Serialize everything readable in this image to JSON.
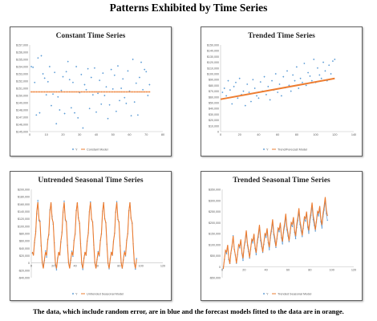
{
  "title": "Patterns Exhibited by Time Series",
  "caption": "The data, which include random error, are in blue and the forecast models fitted to the data are in orange.",
  "colors": {
    "data": "#5b9bd5",
    "model": "#ed7d31",
    "axis": "#bfbfbf",
    "text": "#595959"
  },
  "chart_data": [
    {
      "type": "scatter",
      "title": "Constant Time Series",
      "xlim": [
        0,
        80
      ],
      "ylim": [
        145000,
        157000
      ],
      "xticks": [
        0,
        10,
        20,
        30,
        40,
        50,
        60,
        70,
        80
      ],
      "yticks": [
        145000,
        146000,
        147000,
        148000,
        149000,
        150000,
        151000,
        152000,
        153000,
        154000,
        155000,
        156000,
        157000
      ],
      "legend": [
        "Y",
        "Constant Model"
      ],
      "legend_position": "bottom",
      "series": [
        {
          "name": "Y",
          "render": "points",
          "color": "#5b9bd5",
          "x": [
            1,
            2,
            3,
            4,
            5,
            6,
            7,
            8,
            9,
            10,
            11,
            12,
            13,
            14,
            15,
            16,
            17,
            18,
            19,
            20,
            21,
            22,
            23,
            24,
            25,
            26,
            27,
            28,
            29,
            30,
            31,
            32,
            33,
            34,
            35,
            36,
            37,
            38,
            39,
            40,
            41,
            42,
            43,
            44,
            45,
            46,
            47,
            48,
            49,
            50,
            51,
            52,
            53,
            54,
            55,
            56,
            57,
            58,
            59,
            60,
            61,
            62,
            63,
            64,
            65,
            66,
            67,
            68,
            69,
            70,
            71,
            72
          ],
          "y": [
            154000,
            153900,
            151800,
            147300,
            155200,
            147600,
            155500,
            153000,
            152400,
            150100,
            151900,
            154000,
            148600,
            150200,
            153200,
            146100,
            149800,
            148000,
            150700,
            152600,
            147500,
            153300,
            154700,
            152200,
            148300,
            151800,
            147600,
            154000,
            146900,
            150400,
            152900,
            145500,
            151500,
            150800,
            153700,
            148200,
            152500,
            150100,
            153800,
            147700,
            150300,
            152100,
            148800,
            153100,
            150000,
            151200,
            146800,
            148700,
            153600,
            150900,
            152800,
            147800,
            154100,
            149300,
            151000,
            152300,
            149700,
            148900,
            153400,
            150600,
            147200,
            155000,
            149100,
            151700,
            147300,
            152500,
            154600,
            150800,
            153600,
            153300,
            150000,
            151500
          ]
        },
        {
          "name": "Constant Model",
          "render": "points",
          "color": "#ed7d31",
          "constant": 150500
        }
      ]
    },
    {
      "type": "scatter",
      "title": "Trended Time Series",
      "xlim": [
        0,
        140
      ],
      "ylim": [
        0,
        150000
      ],
      "xticks": [
        0,
        20,
        40,
        60,
        80,
        100,
        120,
        140
      ],
      "yticks": [
        0,
        10000,
        20000,
        30000,
        40000,
        50000,
        60000,
        70000,
        80000,
        90000,
        100000,
        110000,
        120000,
        130000,
        140000,
        150000
      ],
      "legend": [
        "Y",
        "Trend/Forecast Model"
      ],
      "legend_position": "bottom",
      "series": [
        {
          "name": "Y",
          "render": "points",
          "color": "#5b9bd5",
          "x": [
            2,
            4,
            6,
            8,
            10,
            12,
            14,
            16,
            18,
            20,
            22,
            24,
            26,
            28,
            30,
            32,
            34,
            36,
            38,
            40,
            42,
            44,
            46,
            48,
            50,
            52,
            54,
            56,
            58,
            60,
            62,
            64,
            66,
            68,
            70,
            72,
            74,
            76,
            78,
            80,
            82,
            84,
            86,
            88,
            90,
            92,
            94,
            96,
            98,
            100,
            102,
            104,
            106,
            108,
            110,
            112,
            114,
            116,
            118,
            120
          ],
          "y": [
            68000,
            75000,
            62000,
            88000,
            72000,
            48000,
            78000,
            85000,
            58000,
            92000,
            64000,
            70000,
            45000,
            82000,
            68000,
            52000,
            90000,
            75000,
            62000,
            58000,
            86000,
            70000,
            95000,
            64000,
            78000,
            55000,
            88000,
            72000,
            100000,
            68000,
            82000,
            62000,
            95000,
            76000,
            105000,
            80000,
            70000,
            98000,
            88000,
            112000,
            75000,
            92000,
            85000,
            118000,
            80000,
            102000,
            96000,
            88000,
            125000,
            85000,
            110000,
            98000,
            92000,
            120000,
            105000,
            88000,
            115000,
            100000,
            122000,
            125000
          ]
        },
        {
          "name": "Trend/Forecast Model",
          "render": "line",
          "color": "#ed7d31",
          "x": [
            0,
            120
          ],
          "y": [
            56000,
            92000
          ]
        }
      ]
    },
    {
      "type": "line",
      "title": "Untrended Seasonal Time Series",
      "xlim": [
        0,
        120
      ],
      "ylim": [
        -40000,
        200000
      ],
      "xticks": [
        0,
        20,
        40,
        60,
        80,
        100,
        120
      ],
      "yticks": [
        -40000,
        -20000,
        0,
        20000,
        40000,
        60000,
        80000,
        100000,
        120000,
        140000,
        160000,
        180000,
        200000
      ],
      "legend": [
        "Y",
        "Untrended Seasonal Model"
      ],
      "legend_position": "bottom",
      "season_length": 12,
      "seasonal_pattern": [
        30000,
        20000,
        60000,
        80000,
        140000,
        165000,
        120000,
        110000,
        50000,
        0,
        -15000,
        10000
      ],
      "periods": 8,
      "series": [
        {
          "name": "Y",
          "render": "line-markers",
          "color": "#5b9bd5",
          "y": [
            27000,
            24000,
            55000,
            86000,
            134000,
            170000,
            115000,
            114000,
            46000,
            4000,
            -10000,
            6000,
            33000,
            16000,
            64000,
            76000,
            145000,
            160000,
            126000,
            105000,
            55000,
            -5000,
            -19000,
            14000,
            26000,
            22000,
            57000,
            84000,
            137000,
            168000,
            117000,
            113000,
            48000,
            3000,
            -11000,
            7000,
            32000,
            18000,
            62000,
            78000,
            142000,
            162000,
            123000,
            107000,
            52000,
            -3000,
            -18000,
            13000,
            28000,
            21000,
            59000,
            82000,
            139000,
            166000,
            119000,
            111000,
            49000,
            2000,
            -13000,
            9000,
            31000,
            19000,
            61000,
            79000,
            141000,
            164000,
            121000,
            109000,
            51000,
            -1000,
            -16000,
            11000,
            29000,
            21000,
            58000,
            81000,
            138000,
            167000,
            118000,
            112000,
            47000,
            1000,
            -14000,
            8000,
            32000,
            19000,
            62000,
            79000,
            142000,
            163000,
            122000,
            108000,
            52000,
            -2000,
            -17000,
            12000
          ]
        },
        {
          "name": "Untrended Seasonal Model",
          "render": "line",
          "color": "#ed7d31"
        }
      ]
    },
    {
      "type": "line",
      "title": "Trended Seasonal Time Series",
      "xlim": [
        0,
        120
      ],
      "ylim": [
        -50000,
        350000
      ],
      "xticks": [
        0,
        20,
        40,
        60,
        80,
        100,
        120
      ],
      "yticks": [
        -50000,
        0,
        50000,
        100000,
        150000,
        200000,
        250000,
        300000,
        350000
      ],
      "legend": [
        "Y",
        "Trended Seasonal Model"
      ],
      "legend_position": "bottom",
      "season_length": 12,
      "seasonal_pattern": [
        -10000,
        30000,
        70000,
        60000,
        90000,
        30000,
        0,
        50000,
        80000,
        120000,
        60000,
        30000
      ],
      "trend": {
        "start": 0,
        "slope_per_period": 2100
      },
      "periods": 8,
      "series": [
        {
          "name": "Y",
          "render": "line-markers",
          "color": "#5b9bd5",
          "y": [
            -8000,
            33000,
            72000,
            58000,
            93000,
            32000,
            14000,
            62000,
            89000,
            140000,
            79000,
            52000,
            15000,
            54000,
            97000,
            85000,
            115000,
            59000,
            28000,
            84000,
            111000,
            154000,
            96000,
            68000,
            38000,
            79000,
            121000,
            107000,
            141000,
            82000,
            54000,
            107000,
            134000,
            177000,
            118000,
            91000,
            64000,
            101000,
            146000,
            132000,
            163000,
            108000,
            77000,
            131000,
            160000,
            199000,
            144000,
            114000,
            87000,
            125000,
            168000,
            158000,
            188000,
            131000,
            103000,
            154000,
            183000,
            225000,
            167000,
            139000,
            113000,
            151000,
            191000,
            182000,
            212000,
            155000,
            127000,
            177000,
            209000,
            248000,
            191000,
            162000,
            136000,
            175000,
            215000,
            206000,
            239000,
            179000,
            151000,
            201000,
            233000,
            274000,
            214000,
            187000,
            161000,
            202000,
            242000,
            230000,
            264000,
            203000,
            175000,
            226000,
            256000,
            298000,
            240000,
            210000
          ]
        },
        {
          "name": "Trended Seasonal Model",
          "render": "line",
          "color": "#ed7d31"
        }
      ]
    }
  ]
}
